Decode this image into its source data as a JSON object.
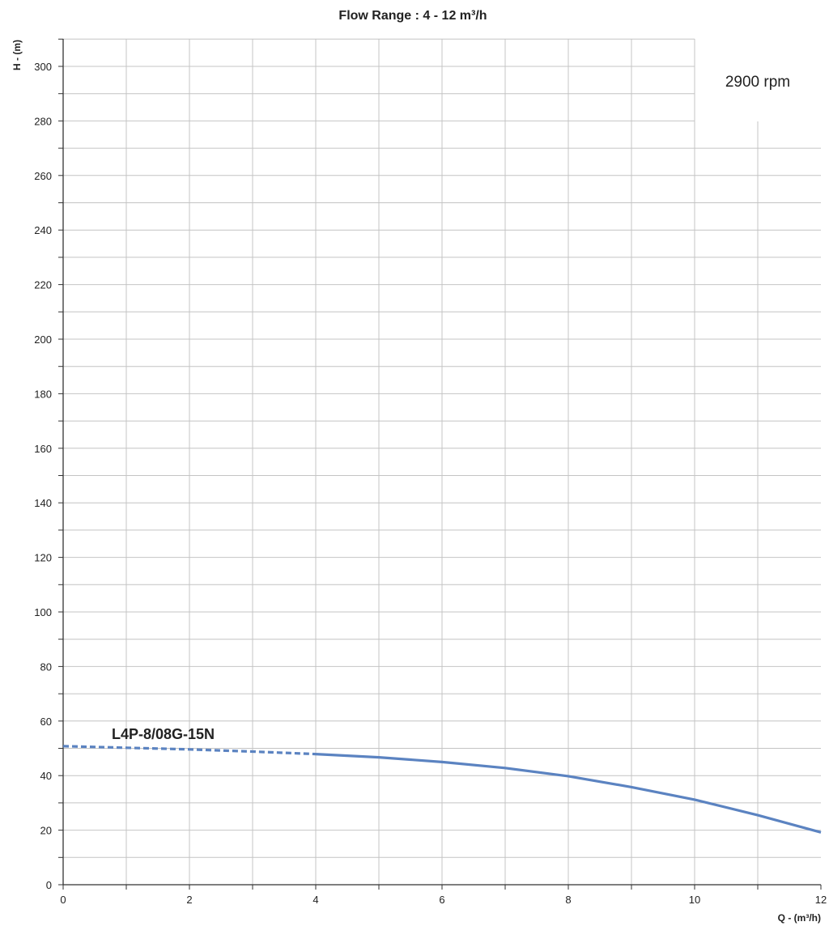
{
  "chart_data": {
    "type": "line",
    "title": "Flow Range : 4 - 12 m³/h",
    "xlabel": "Q - (m³/h)",
    "ylabel": "H - (m)",
    "xlim": [
      0,
      12
    ],
    "ylim": [
      0,
      310
    ],
    "x_ticks": [
      0,
      2,
      4,
      6,
      8,
      10,
      12
    ],
    "y_ticks": [
      0,
      20,
      40,
      60,
      80,
      100,
      120,
      140,
      160,
      180,
      200,
      220,
      240,
      260,
      280,
      300
    ],
    "x_minor_step": 1,
    "y_minor_step": 10,
    "grid": true,
    "annotation": "2900 rpm",
    "line_color": "#5b83c1",
    "series": [
      {
        "name": "L4P-8/08G-15N",
        "dashed_segment": {
          "x": [
            0,
            1,
            2,
            3,
            4
          ],
          "y": [
            50.8,
            50.2,
            49.6,
            48.8,
            47.9
          ]
        },
        "solid_segment": {
          "x": [
            4,
            5,
            6,
            7,
            8,
            9,
            10,
            11,
            12
          ],
          "y": [
            47.9,
            46.7,
            45.0,
            42.8,
            39.8,
            35.8,
            31.2,
            25.5,
            19.2
          ]
        }
      }
    ]
  }
}
